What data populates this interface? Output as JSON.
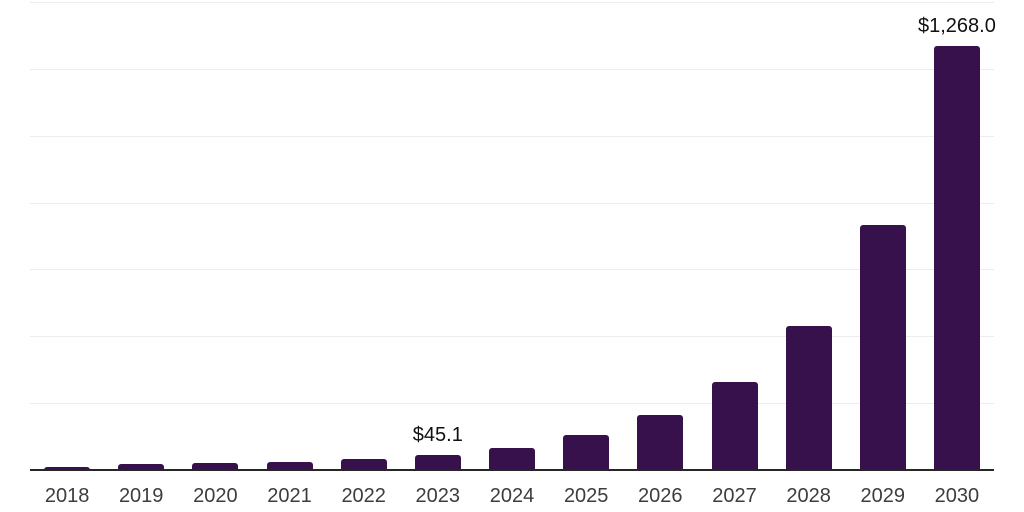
{
  "chart_data": {
    "type": "bar",
    "title": "",
    "xlabel": "",
    "ylabel": "",
    "categories": [
      "2018",
      "2019",
      "2020",
      "2021",
      "2022",
      "2023",
      "2024",
      "2025",
      "2026",
      "2027",
      "2028",
      "2029",
      "2030"
    ],
    "values": [
      10,
      19,
      21,
      25,
      34,
      45.1,
      66,
      105,
      165,
      262,
      432,
      732,
      1268.0
    ],
    "annotations": [
      {
        "category": "2023",
        "text": "$45.1"
      },
      {
        "category": "2030",
        "text": "$1,268.0"
      }
    ],
    "ylim": [
      0,
      1400
    ],
    "gridline_step": 200,
    "grid": "horizontal",
    "legend": "none",
    "y_tick_labels_visible": false,
    "colors": {
      "bar": "#36114b",
      "axis": "#262626",
      "gridline": "#ececec",
      "tick_label": "#3d3d3d",
      "annotation": "#111111",
      "background": "#ffffff"
    }
  }
}
